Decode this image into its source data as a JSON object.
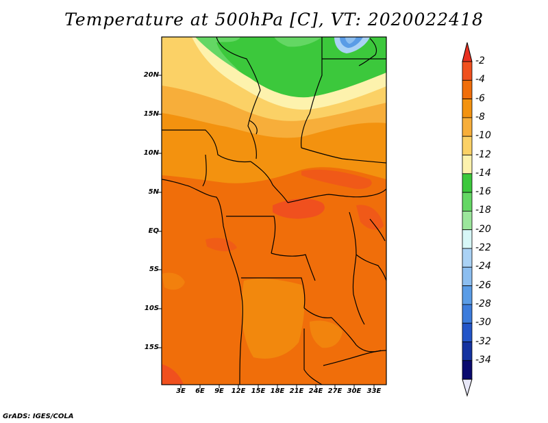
{
  "title": "Temperature at 500hPa [C], VT: 2020022418",
  "credit": "GrADS: IGES/COLA",
  "map": {
    "y_ticks": [
      "20N",
      "15N",
      "10N",
      "5N",
      "EQ",
      "5S",
      "10S",
      "15S"
    ],
    "x_ticks": [
      "3E",
      "6E",
      "9E",
      "12E",
      "15E",
      "18E",
      "21E",
      "24E",
      "27E",
      "30E",
      "33E"
    ]
  },
  "colorbar": {
    "labels": [
      "-2",
      "-4",
      "-6",
      "-8",
      "-10",
      "-12",
      "-14",
      "-16",
      "-18",
      "-20",
      "-22",
      "-24",
      "-26",
      "-28",
      "-30",
      "-32",
      "-34"
    ],
    "colors": [
      "#f0501e",
      "#f06e0a",
      "#f3920f",
      "#f7ae3a",
      "#fbd166",
      "#fdf2ad",
      "#3cc83c",
      "#64d764",
      "#9ce69c",
      "#d7f7f7",
      "#aad2f5",
      "#8cbef0",
      "#5a9ce6",
      "#3c7cdc",
      "#2355c8",
      "#1432a0",
      "#0a0a6e"
    ],
    "top_color": "#e83020",
    "bottom_color": "#e8e8f8"
  }
}
